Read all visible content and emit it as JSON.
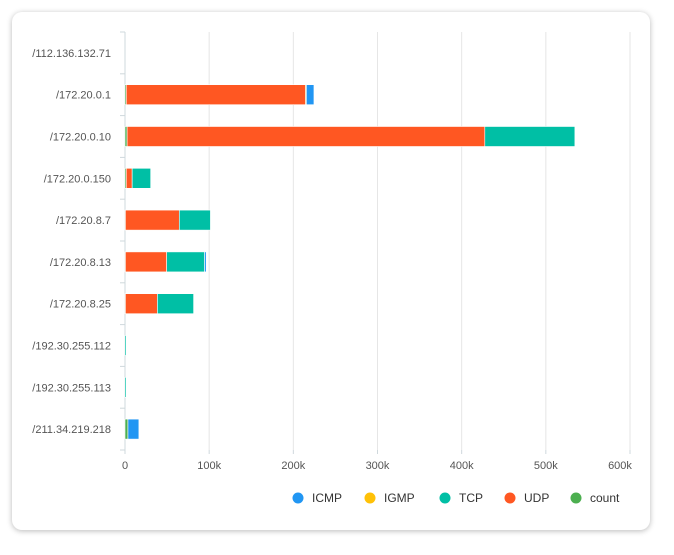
{
  "chart_data": {
    "type": "bar",
    "orientation": "horizontal",
    "stacked": true,
    "categories": [
      "/112.136.132.71",
      "/172.20.0.1",
      "/172.20.0.10",
      "/172.20.0.150",
      "/172.20.8.7",
      "/172.20.8.13",
      "/172.20.8.25",
      "/192.30.255.112",
      "/192.30.255.113",
      "/211.34.219.218"
    ],
    "series": [
      {
        "name": "count",
        "color": "#4caf50",
        "values": [
          0,
          1500,
          2500,
          1500,
          500,
          500,
          500,
          0,
          0,
          3500
        ]
      },
      {
        "name": "UDP",
        "color": "#ff5722",
        "values": [
          0,
          213000,
          425000,
          7000,
          64000,
          49000,
          38000,
          0,
          0,
          0
        ]
      },
      {
        "name": "IGMP",
        "color": "#ffc107",
        "values": [
          0,
          1000,
          0,
          0,
          0,
          0,
          0,
          0,
          0,
          0
        ]
      },
      {
        "name": "TCP",
        "color": "#00bfa5",
        "values": [
          0,
          0,
          107000,
          22000,
          37000,
          45000,
          43000,
          1500,
          1500,
          0
        ]
      },
      {
        "name": "ICMP",
        "color": "#2196f3",
        "values": [
          0,
          9000,
          0,
          0,
          0,
          2000,
          0,
          0,
          0,
          13000
        ]
      }
    ],
    "legend": [
      "ICMP",
      "IGMP",
      "TCP",
      "UDP",
      "count"
    ],
    "legend_position": "bottom-right",
    "xlim": [
      0,
      600000
    ],
    "xticks": [
      0,
      100000,
      200000,
      300000,
      400000,
      500000,
      600000
    ],
    "xtick_labels": [
      "0",
      "100k",
      "200k",
      "300k",
      "400k",
      "500k",
      "600k"
    ],
    "grid": "vertical",
    "title": "",
    "xlabel": "",
    "ylabel": ""
  }
}
